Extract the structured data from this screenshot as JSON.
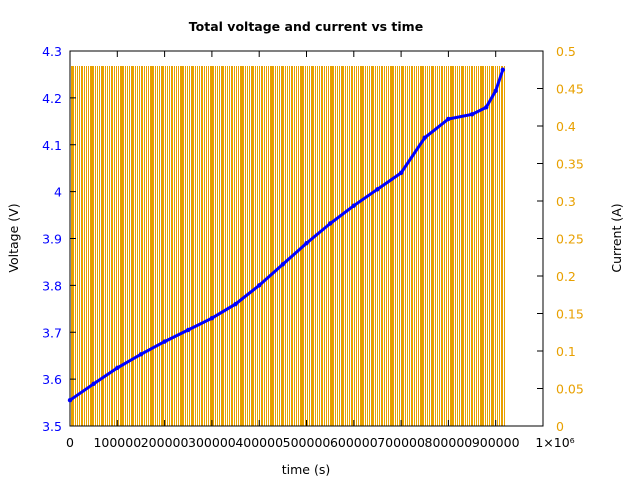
{
  "chart_data": {
    "type": "line",
    "title": "Total voltage and current vs time",
    "xlabel": "time (s)",
    "ylabel": "Voltage (V)",
    "y2label": "Current (A)",
    "xlim": [
      0,
      1000000
    ],
    "ylim": [
      3.5,
      4.3
    ],
    "y2lim": [
      0,
      0.5
    ],
    "grid": false,
    "x_ticks": [
      "0",
      "100000",
      "200000",
      "300000",
      "400000",
      "500000",
      "600000",
      "700000",
      "800000",
      "900000",
      "1×10⁶"
    ],
    "x_tick_values": [
      0,
      100000,
      200000,
      300000,
      400000,
      500000,
      600000,
      700000,
      800000,
      900000,
      1000000
    ],
    "y_ticks": [
      "3.5",
      "3.6",
      "3.7",
      "3.8",
      "3.9",
      "4",
      "4.1",
      "4.2",
      "4.3"
    ],
    "y_tick_values": [
      3.5,
      3.6,
      3.7,
      3.8,
      3.9,
      4.0,
      4.1,
      4.2,
      4.3
    ],
    "y2_ticks": [
      "0",
      "0.05",
      "0.1",
      "0.15",
      "0.2",
      "0.25",
      "0.3",
      "0.35",
      "0.4",
      "0.45",
      "0.5"
    ],
    "y2_tick_values": [
      0,
      0.05,
      0.1,
      0.15,
      0.2,
      0.25,
      0.3,
      0.35,
      0.4,
      0.45,
      0.5
    ],
    "colors": {
      "voltage": "#0000ff",
      "current": "#e8a000",
      "axis_left": "#0000ff",
      "axis_right": "#e8a000"
    },
    "series": [
      {
        "axis": "left",
        "style": "line-points",
        "x": [
          0,
          50000,
          100000,
          150000,
          200000,
          250000,
          300000,
          350000,
          400000,
          450000,
          500000,
          550000,
          600000,
          650000,
          700000,
          750000,
          800000,
          850000,
          880000,
          900000,
          915000
        ],
        "values": [
          3.555,
          3.59,
          3.624,
          3.653,
          3.68,
          3.705,
          3.73,
          3.76,
          3.8,
          3.845,
          3.89,
          3.932,
          3.97,
          4.005,
          4.04,
          4.115,
          4.155,
          4.165,
          4.18,
          4.215,
          4.26
        ]
      },
      {
        "axis": "right",
        "style": "impulses",
        "pulse_on_value": 0.48,
        "pulse_off_value": 0,
        "x_range": [
          0,
          920000
        ]
      }
    ]
  }
}
